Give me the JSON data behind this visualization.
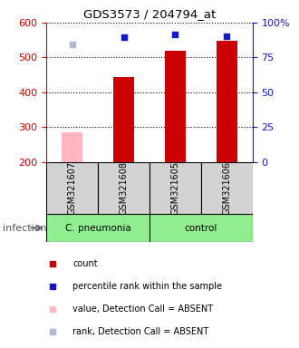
{
  "title": "GDS3573 / 204794_at",
  "samples": [
    "GSM321607",
    "GSM321608",
    "GSM321605",
    "GSM321606"
  ],
  "bar_values": [
    null,
    443,
    519,
    548
  ],
  "bar_absent_value": 285,
  "bar_absent_color": "#ffb6c1",
  "bar_present_color": "#cc0000",
  "blue_dots": [
    537,
    558,
    565,
    562
  ],
  "blue_dot_absent_color": "#b0b8d8",
  "blue_dot_present_color": "#1515cc",
  "absent_samples": [
    0
  ],
  "ylim_left": [
    200,
    600
  ],
  "yticks_left": [
    200,
    300,
    400,
    500,
    600
  ],
  "ytick_labels_right": [
    "0",
    "25",
    "50",
    "75",
    "100%"
  ],
  "left_tick_color": "#cc0000",
  "right_tick_color": "#1515cc",
  "group1_label": "C. pneumonia",
  "group2_label": "control",
  "group_color": "#90ee90",
  "sample_box_color": "#d3d3d3",
  "legend": [
    {
      "label": "count",
      "color": "#cc0000"
    },
    {
      "label": "percentile rank within the sample",
      "color": "#1515cc"
    },
    {
      "label": "value, Detection Call = ABSENT",
      "color": "#ffb6c1"
    },
    {
      "label": "rank, Detection Call = ABSENT",
      "color": "#b0b8d8"
    }
  ]
}
